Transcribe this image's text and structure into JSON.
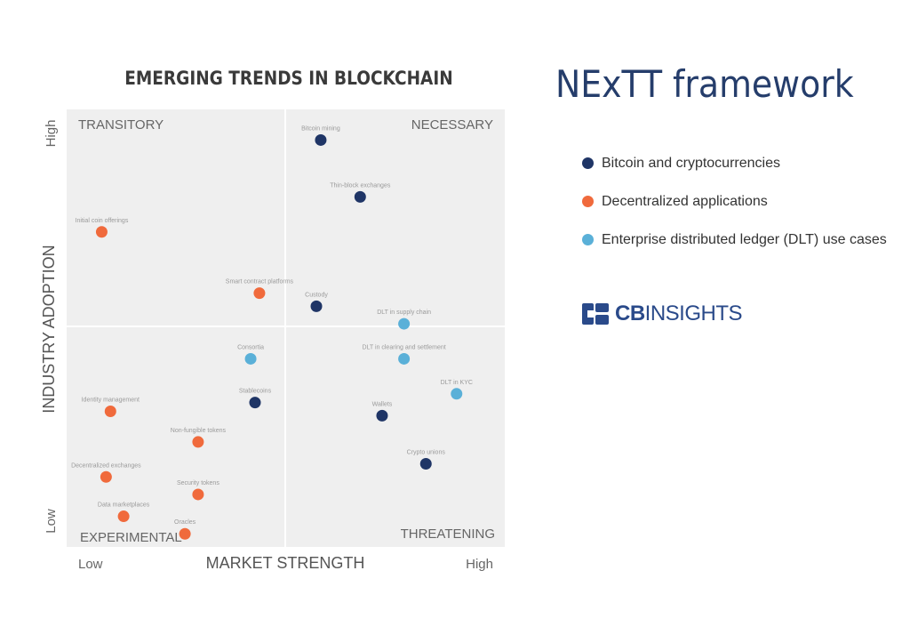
{
  "chart_data": {
    "type": "scatter",
    "title": "EMERGING TRENDS IN BLOCKCHAIN",
    "xlabel": "MARKET STRENGTH",
    "ylabel": "INDUSTRY ADOPTION",
    "x_ticks": {
      "low": "Low",
      "high": "High"
    },
    "y_ticks": {
      "low": "Low",
      "high": "High"
    },
    "quadrants": {
      "top_left": "TRANSITORY",
      "top_right": "NECESSARY",
      "bottom_left": "EXPERIMENTAL",
      "bottom_right": "THREATENING"
    },
    "xlim": [
      0,
      100
    ],
    "ylim": [
      0,
      100
    ],
    "series": [
      {
        "name": "Bitcoin and cryptocurrencies",
        "color": "#1f3566",
        "points": [
          {
            "label": "Bitcoin mining",
            "x": 58,
            "y": 93
          },
          {
            "label": "Thin-block exchanges",
            "x": 67,
            "y": 80
          },
          {
            "label": "Custody",
            "x": 57,
            "y": 55
          },
          {
            "label": "Wallets",
            "x": 72,
            "y": 30
          },
          {
            "label": "Stablecoins",
            "x": 43,
            "y": 33
          },
          {
            "label": "Crypto unions",
            "x": 82,
            "y": 19
          }
        ]
      },
      {
        "name": "Decentralized applications",
        "color": "#f06a3c",
        "points": [
          {
            "label": "Initial coin offerings",
            "x": 8,
            "y": 72
          },
          {
            "label": "Smart contract platforms",
            "x": 44,
            "y": 58
          },
          {
            "label": "Identity management",
            "x": 10,
            "y": 31
          },
          {
            "label": "Non-fungible tokens",
            "x": 30,
            "y": 24
          },
          {
            "label": "Decentralized exchanges",
            "x": 9,
            "y": 16
          },
          {
            "label": "Security tokens",
            "x": 30,
            "y": 12
          },
          {
            "label": "Data marketplaces",
            "x": 13,
            "y": 7
          },
          {
            "label": "Oracles",
            "x": 27,
            "y": 3
          }
        ]
      },
      {
        "name": "Enterprise distributed ledger (DLT) use cases",
        "color": "#5ab0d8",
        "points": [
          {
            "label": "DLT in supply chain",
            "x": 77,
            "y": 51
          },
          {
            "label": "Consortia",
            "x": 42,
            "y": 43
          },
          {
            "label": "DLT in clearing and settlement",
            "x": 77,
            "y": 43
          },
          {
            "label": "DLT in KYC",
            "x": 89,
            "y": 35
          }
        ]
      }
    ]
  },
  "panel": {
    "title": "NExTT framework"
  },
  "brand": {
    "logo_bold": "CB",
    "logo_regular": "INSIGHTS"
  }
}
